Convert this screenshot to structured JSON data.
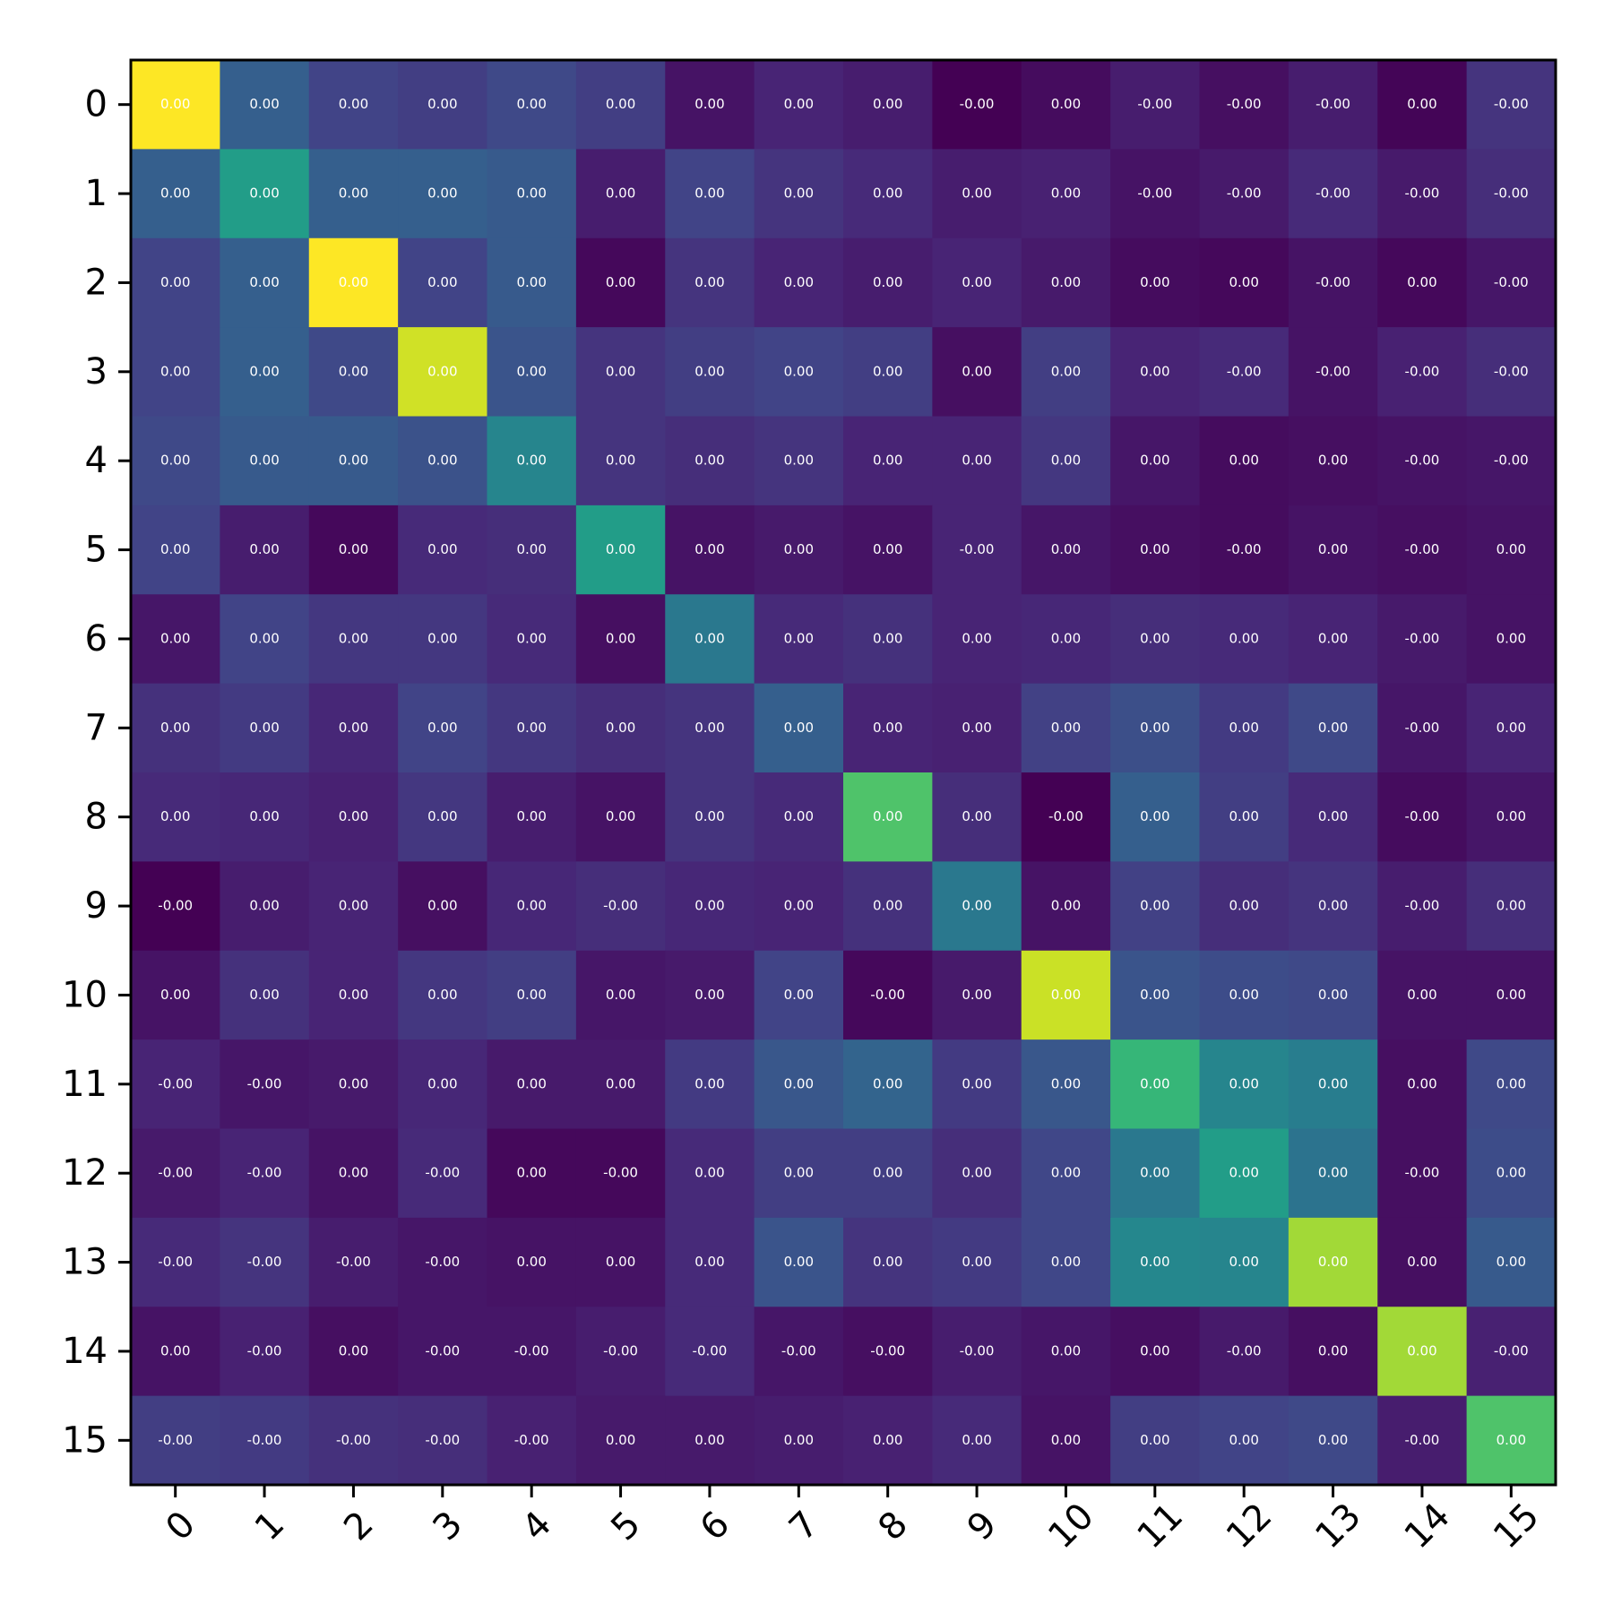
{
  "chart_data": {
    "type": "heatmap",
    "title": "",
    "xlabel": "",
    "ylabel": "",
    "x_ticks": [
      "0",
      "1",
      "2",
      "3",
      "4",
      "5",
      "6",
      "7",
      "8",
      "9",
      "10",
      "11",
      "12",
      "13",
      "14",
      "15"
    ],
    "y_ticks": [
      "0",
      "1",
      "2",
      "3",
      "4",
      "5",
      "6",
      "7",
      "8",
      "9",
      "10",
      "11",
      "12",
      "13",
      "14",
      "15"
    ],
    "colormap": "viridis",
    "cell_format": "0.00",
    "color_scale": [
      0,
      1
    ],
    "relative_intensity": [
      [
        1.0,
        0.3,
        0.2,
        0.18,
        0.22,
        0.18,
        0.05,
        0.1,
        0.08,
        0.0,
        0.03,
        0.08,
        0.04,
        0.08,
        0.01,
        0.15
      ],
      [
        0.3,
        0.55,
        0.3,
        0.3,
        0.28,
        0.08,
        0.2,
        0.15,
        0.12,
        0.08,
        0.09,
        0.05,
        0.07,
        0.12,
        0.07,
        0.13
      ],
      [
        0.2,
        0.3,
        1.0,
        0.2,
        0.28,
        0.02,
        0.15,
        0.1,
        0.08,
        0.1,
        0.07,
        0.03,
        0.02,
        0.05,
        0.02,
        0.06
      ],
      [
        0.2,
        0.3,
        0.22,
        0.93,
        0.26,
        0.15,
        0.18,
        0.2,
        0.18,
        0.04,
        0.18,
        0.1,
        0.12,
        0.05,
        0.09,
        0.13
      ],
      [
        0.22,
        0.28,
        0.28,
        0.25,
        0.45,
        0.15,
        0.13,
        0.15,
        0.1,
        0.1,
        0.16,
        0.06,
        0.03,
        0.04,
        0.05,
        0.06
      ],
      [
        0.2,
        0.08,
        0.02,
        0.12,
        0.13,
        0.55,
        0.05,
        0.07,
        0.05,
        0.1,
        0.06,
        0.04,
        0.03,
        0.05,
        0.04,
        0.05
      ],
      [
        0.06,
        0.2,
        0.16,
        0.16,
        0.12,
        0.04,
        0.4,
        0.12,
        0.14,
        0.1,
        0.11,
        0.13,
        0.12,
        0.1,
        0.07,
        0.05
      ],
      [
        0.14,
        0.17,
        0.11,
        0.2,
        0.16,
        0.13,
        0.15,
        0.3,
        0.1,
        0.09,
        0.19,
        0.24,
        0.17,
        0.22,
        0.06,
        0.1
      ],
      [
        0.12,
        0.11,
        0.09,
        0.16,
        0.08,
        0.05,
        0.15,
        0.12,
        0.72,
        0.13,
        0.0,
        0.3,
        0.18,
        0.12,
        0.03,
        0.06
      ],
      [
        0.0,
        0.08,
        0.1,
        0.04,
        0.11,
        0.13,
        0.11,
        0.1,
        0.14,
        0.4,
        0.05,
        0.19,
        0.13,
        0.15,
        0.08,
        0.13
      ],
      [
        0.05,
        0.14,
        0.1,
        0.16,
        0.18,
        0.06,
        0.07,
        0.2,
        0.02,
        0.07,
        0.92,
        0.26,
        0.23,
        0.22,
        0.05,
        0.05
      ],
      [
        0.1,
        0.06,
        0.07,
        0.11,
        0.07,
        0.07,
        0.17,
        0.27,
        0.32,
        0.17,
        0.27,
        0.66,
        0.45,
        0.42,
        0.04,
        0.22
      ],
      [
        0.07,
        0.1,
        0.05,
        0.12,
        0.02,
        0.02,
        0.12,
        0.18,
        0.18,
        0.13,
        0.21,
        0.4,
        0.55,
        0.38,
        0.04,
        0.23
      ],
      [
        0.12,
        0.15,
        0.08,
        0.06,
        0.05,
        0.05,
        0.12,
        0.26,
        0.15,
        0.17,
        0.21,
        0.46,
        0.45,
        0.86,
        0.04,
        0.28
      ],
      [
        0.05,
        0.09,
        0.04,
        0.06,
        0.06,
        0.08,
        0.12,
        0.06,
        0.04,
        0.08,
        0.06,
        0.04,
        0.07,
        0.04,
        0.86,
        0.09
      ],
      [
        0.18,
        0.17,
        0.14,
        0.13,
        0.09,
        0.07,
        0.07,
        0.08,
        0.09,
        0.12,
        0.05,
        0.18,
        0.2,
        0.22,
        0.08,
        0.72
      ]
    ],
    "cell_labels": [
      [
        "0.00",
        "0.00",
        "0.00",
        "0.00",
        "0.00",
        "0.00",
        "0.00",
        "0.00",
        "0.00",
        "-0.00",
        "0.00",
        "-0.00",
        "-0.00",
        "-0.00",
        "0.00",
        "-0.00"
      ],
      [
        "0.00",
        "0.00",
        "0.00",
        "0.00",
        "0.00",
        "0.00",
        "0.00",
        "0.00",
        "0.00",
        "0.00",
        "0.00",
        "-0.00",
        "-0.00",
        "-0.00",
        "-0.00",
        "-0.00"
      ],
      [
        "0.00",
        "0.00",
        "0.00",
        "0.00",
        "0.00",
        "0.00",
        "0.00",
        "0.00",
        "0.00",
        "0.00",
        "0.00",
        "0.00",
        "0.00",
        "-0.00",
        "0.00",
        "-0.00"
      ],
      [
        "0.00",
        "0.00",
        "0.00",
        "0.00",
        "0.00",
        "0.00",
        "0.00",
        "0.00",
        "0.00",
        "0.00",
        "0.00",
        "0.00",
        "-0.00",
        "-0.00",
        "-0.00",
        "-0.00"
      ],
      [
        "0.00",
        "0.00",
        "0.00",
        "0.00",
        "0.00",
        "0.00",
        "0.00",
        "0.00",
        "0.00",
        "0.00",
        "0.00",
        "0.00",
        "0.00",
        "0.00",
        "-0.00",
        "-0.00"
      ],
      [
        "0.00",
        "0.00",
        "0.00",
        "0.00",
        "0.00",
        "0.00",
        "0.00",
        "0.00",
        "0.00",
        "-0.00",
        "0.00",
        "0.00",
        "-0.00",
        "0.00",
        "-0.00",
        "0.00"
      ],
      [
        "0.00",
        "0.00",
        "0.00",
        "0.00",
        "0.00",
        "0.00",
        "0.00",
        "0.00",
        "0.00",
        "0.00",
        "0.00",
        "0.00",
        "0.00",
        "0.00",
        "-0.00",
        "0.00"
      ],
      [
        "0.00",
        "0.00",
        "0.00",
        "0.00",
        "0.00",
        "0.00",
        "0.00",
        "0.00",
        "0.00",
        "0.00",
        "0.00",
        "0.00",
        "0.00",
        "0.00",
        "-0.00",
        "0.00"
      ],
      [
        "0.00",
        "0.00",
        "0.00",
        "0.00",
        "0.00",
        "0.00",
        "0.00",
        "0.00",
        "0.00",
        "0.00",
        "-0.00",
        "0.00",
        "0.00",
        "0.00",
        "-0.00",
        "0.00"
      ],
      [
        "-0.00",
        "0.00",
        "0.00",
        "0.00",
        "0.00",
        "-0.00",
        "0.00",
        "0.00",
        "0.00",
        "0.00",
        "0.00",
        "0.00",
        "0.00",
        "0.00",
        "-0.00",
        "0.00"
      ],
      [
        "0.00",
        "0.00",
        "0.00",
        "0.00",
        "0.00",
        "0.00",
        "0.00",
        "0.00",
        "-0.00",
        "0.00",
        "0.00",
        "0.00",
        "0.00",
        "0.00",
        "0.00",
        "0.00"
      ],
      [
        "-0.00",
        "-0.00",
        "0.00",
        "0.00",
        "0.00",
        "0.00",
        "0.00",
        "0.00",
        "0.00",
        "0.00",
        "0.00",
        "0.00",
        "0.00",
        "0.00",
        "0.00",
        "0.00"
      ],
      [
        "-0.00",
        "-0.00",
        "0.00",
        "-0.00",
        "0.00",
        "-0.00",
        "0.00",
        "0.00",
        "0.00",
        "0.00",
        "0.00",
        "0.00",
        "0.00",
        "0.00",
        "-0.00",
        "0.00"
      ],
      [
        "-0.00",
        "-0.00",
        "-0.00",
        "-0.00",
        "0.00",
        "0.00",
        "0.00",
        "0.00",
        "0.00",
        "0.00",
        "0.00",
        "0.00",
        "0.00",
        "0.00",
        "0.00",
        "0.00"
      ],
      [
        "0.00",
        "-0.00",
        "0.00",
        "-0.00",
        "-0.00",
        "-0.00",
        "-0.00",
        "-0.00",
        "-0.00",
        "-0.00",
        "0.00",
        "0.00",
        "-0.00",
        "0.00",
        "0.00",
        "-0.00"
      ],
      [
        "-0.00",
        "-0.00",
        "-0.00",
        "-0.00",
        "-0.00",
        "0.00",
        "0.00",
        "0.00",
        "0.00",
        "0.00",
        "0.00",
        "0.00",
        "0.00",
        "0.00",
        "-0.00",
        "0.00"
      ]
    ],
    "grid": false,
    "legend": "none",
    "colors": {
      "frame": "#000000",
      "cell_text": "#ffffff",
      "tick_text": "#000000"
    }
  }
}
